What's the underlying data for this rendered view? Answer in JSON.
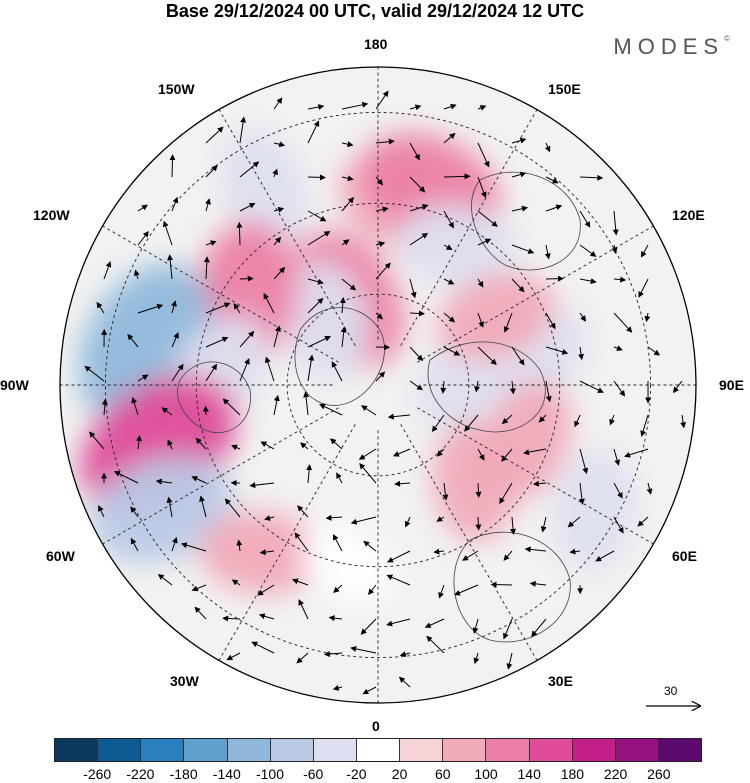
{
  "title": "Base 29/12/2024 00 UTC, valid 29/12/2024 12 UTC",
  "brand": {
    "name": "MODES",
    "mark": "©"
  },
  "longitude_labels": {
    "top": "180",
    "bottom": "0",
    "left": "90W",
    "right": "90E",
    "upper_left": "150W",
    "upper_right": "150E",
    "mid_upper_left": "120W",
    "mid_upper_right": "120E",
    "mid_lower_left": "60W",
    "mid_lower_right": "60E",
    "lower_left": "30W",
    "lower_right": "30E"
  },
  "vector_scale": {
    "label": "30"
  },
  "colorbar": {
    "colors": [
      "#0b3a5c",
      "#0e5b94",
      "#2a7fbf",
      "#5fa0cf",
      "#8fb8db",
      "#b9c9e6",
      "#dedff0",
      "#ffffff",
      "#f6d3d5",
      "#f1aab8",
      "#ec7fa8",
      "#df4c9a",
      "#c21f88",
      "#94117e",
      "#5c0a6e"
    ],
    "ticks": [
      "-260",
      "-220",
      "-180",
      "-140",
      "-100",
      "-60",
      "-20",
      "20",
      "60",
      "100",
      "140",
      "180",
      "220",
      "260"
    ]
  },
  "anomaly_blobs": [
    {
      "lon": 175,
      "lat": 50,
      "value": 60
    },
    {
      "lon": 165,
      "lat": 45,
      "value": 100
    },
    {
      "lon": -150,
      "lat": 40,
      "value": -60
    },
    {
      "lon": 150,
      "lat": 55,
      "value": -60
    },
    {
      "lon": -160,
      "lat": 70,
      "value": 100
    },
    {
      "lon": -140,
      "lat": 72,
      "value": -60
    },
    {
      "lon": -125,
      "lat": 55,
      "value": 100
    },
    {
      "lon": -100,
      "lat": 38,
      "value": -140
    },
    {
      "lon": -95,
      "lat": 55,
      "value": -60
    },
    {
      "lon": -75,
      "lat": 40,
      "value": 140
    },
    {
      "lon": -60,
      "lat": 35,
      "value": -100
    },
    {
      "lon": -35,
      "lat": 45,
      "value": 60
    },
    {
      "lon": 100,
      "lat": 55,
      "value": -60
    },
    {
      "lon": 70,
      "lat": 55,
      "value": 60
    },
    {
      "lon": 60,
      "lat": 35,
      "value": -60
    },
    {
      "lon": 95,
      "lat": 70,
      "value": -60
    },
    {
      "lon": 120,
      "lat": 60,
      "value": 60
    },
    {
      "lon": 45,
      "lat": 60,
      "value": 60
    },
    {
      "lon": -10,
      "lat": 50,
      "value": -20
    }
  ]
}
